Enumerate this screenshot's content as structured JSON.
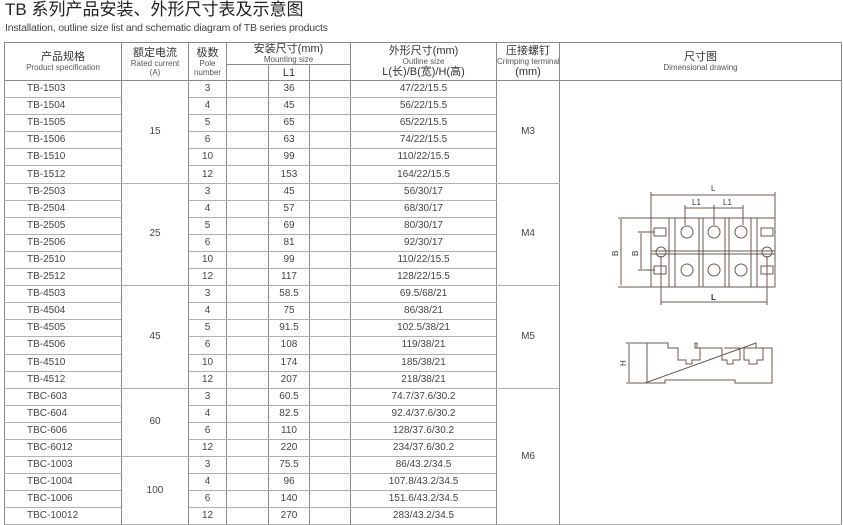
{
  "title": "TB 系列产品安装、外形尺寸表及示意图",
  "subtitle": "Installation, outline size list and schematic diagram of TB series products",
  "headers": {
    "spec_cn": "产品规格",
    "spec_en": "Product specification",
    "current_cn": "额定电流",
    "current_en": "Rated current",
    "current_unit": "(A)",
    "pole_cn": "极数",
    "pole_en1": "Pole",
    "pole_en2": "number",
    "mount_cn": "安装尺寸(mm)",
    "mount_en": "Mounting size",
    "mount_sub": "L1",
    "outline_cn": "外形尺寸(mm)",
    "outline_en": "Outline size",
    "outline_sub": "L(长)/B(宽)/H(高)",
    "crimp_cn": "压接螺钉",
    "crimp_en": "Crimping terminal",
    "crimp_unit": "(mm)",
    "draw_cn": "尺寸图",
    "draw_en": "Dimensional drawing"
  },
  "current_groups": [
    {
      "value": "15",
      "rows": 6
    },
    {
      "value": "25",
      "rows": 6
    },
    {
      "value": "45",
      "rows": 6
    },
    {
      "value": "60",
      "rows": 4
    },
    {
      "value": "100",
      "rows": 4
    }
  ],
  "crimp_groups": [
    {
      "value": "M3",
      "rows": 6
    },
    {
      "value": "M4",
      "rows": 6
    },
    {
      "value": "M5",
      "rows": 6
    },
    {
      "value": "M6",
      "rows": 8
    }
  ],
  "rows": [
    [
      "TB-1503",
      "3",
      "36",
      "47/22/15.5"
    ],
    [
      "TB-1504",
      "4",
      "45",
      "56/22/15.5"
    ],
    [
      "TB-1505",
      "5",
      "65",
      "65/22/15.5"
    ],
    [
      "TB-1506",
      "6",
      "63",
      "74/22/15.5"
    ],
    [
      "TB-1510",
      "10",
      "99",
      "110/22/15.5"
    ],
    [
      "TB-1512",
      "12",
      "153",
      "164/22/15.5"
    ],
    [
      "TB-2503",
      "3",
      "45",
      "56/30/17"
    ],
    [
      "TB-2504",
      "4",
      "57",
      "68/30/17"
    ],
    [
      "TB-2505",
      "5",
      "69",
      "80/30/17"
    ],
    [
      "TB-2506",
      "6",
      "81",
      "92/30/17"
    ],
    [
      "TB-2510",
      "10",
      "99",
      "110/22/15.5"
    ],
    [
      "TB-2512",
      "12",
      "117",
      "128/22/15.5"
    ],
    [
      "TB-4503",
      "3",
      "58.5",
      "69.5/68/21"
    ],
    [
      "TB-4504",
      "4",
      "75",
      "86/38/21"
    ],
    [
      "TB-4505",
      "5",
      "91.5",
      "102.5/38/21"
    ],
    [
      "TB-4506",
      "6",
      "108",
      "119/38/21"
    ],
    [
      "TB-4510",
      "10",
      "174",
      "185/38/21"
    ],
    [
      "TB-4512",
      "12",
      "207",
      "218/38/21"
    ],
    [
      "TBC-603",
      "3",
      "60.5",
      "74.7/37.6/30.2"
    ],
    [
      "TBC-604",
      "4",
      "82.5",
      "92.4/37.6/30.2"
    ],
    [
      "TBC-606",
      "6",
      "110",
      "128/37.6/30.2"
    ],
    [
      "TBC-6012",
      "12",
      "220",
      "234/37.6/30.2"
    ],
    [
      "TBC-1003",
      "3",
      "75.5",
      "86/43.2/34.5"
    ],
    [
      "TBC-1004",
      "4",
      "96",
      "107.8/43.2/34.5"
    ],
    [
      "TBC-1006",
      "6",
      "140",
      "151.6/43.2/34.5"
    ],
    [
      "TBC-10012",
      "12",
      "270",
      "283/43.2/34.5"
    ]
  ],
  "drawing_labels": {
    "L": "L",
    "L1": "L1",
    "B": "B",
    "H": "H"
  }
}
